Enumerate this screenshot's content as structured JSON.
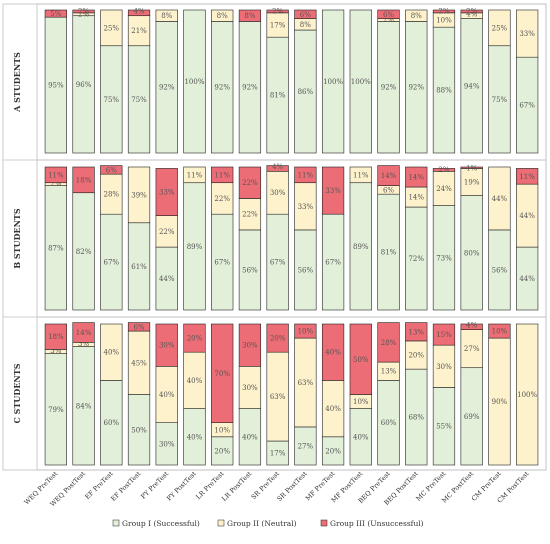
{
  "chart_data": {
    "type": "bar",
    "stacked": true,
    "percent": true,
    "categories": [
      "WEQ PreTest",
      "WEQ PostTest",
      "EF PreTest",
      "EF PostTest",
      "PY PreTest",
      "PY PostTest",
      "LR PreTest",
      "LR PostTest",
      "SR PreTest",
      "SR PostTest",
      "MF PreTest",
      "MF PostTest",
      "BEQ PreTest",
      "BEQ PostTest",
      "MC PreTest",
      "MC PostTest",
      "CM PreTest",
      "CM PostTest"
    ],
    "ylim": [
      0,
      100
    ],
    "legend": {
      "position": "bottom",
      "entries": [
        "Group I (Successful)",
        "Group II (Neutral)",
        "Group III (Unsuccessful)"
      ]
    },
    "colors": {
      "group1": "#e2efd9",
      "group2": "#fdf2cc",
      "group3": "#ec6d75",
      "edge": "#222222"
    },
    "panels": [
      {
        "name": "A STUDENTS",
        "series": [
          {
            "name": "Group I (Successful)",
            "values": [
              95,
              96,
              75,
              75,
              92,
              100,
              92,
              92,
              81,
              86,
              100,
              100,
              92,
              92,
              88,
              94,
              75,
              67
            ]
          },
          {
            "name": "Group II (Neutral)",
            "values": [
              0,
              2,
              25,
              21,
              8,
              0,
              8,
              0,
              17,
              8,
              0,
              0,
              2,
              8,
              10,
              4,
              25,
              33
            ]
          },
          {
            "name": "Group III (Unsuccessful)",
            "values": [
              5,
              2,
              0,
              4,
              0,
              0,
              0,
              8,
              2,
              6,
              0,
              0,
              6,
              0,
              2,
              2,
              0,
              0
            ]
          }
        ]
      },
      {
        "name": "B STUDENTS",
        "series": [
          {
            "name": "Group I (Successful)",
            "values": [
              87,
              82,
              67,
              61,
              44,
              89,
              67,
              56,
              67,
              56,
              67,
              89,
              81,
              72,
              73,
              80,
              56,
              44
            ]
          },
          {
            "name": "Group II (Neutral)",
            "values": [
              2,
              0,
              28,
              39,
              22,
              11,
              22,
              22,
              30,
              33,
              0,
              11,
              6,
              14,
              24,
              19,
              44,
              44
            ]
          },
          {
            "name": "Group III (Unsuccessful)",
            "values": [
              11,
              18,
              6,
              0,
              33,
              0,
              11,
              22,
              4,
              11,
              33,
              0,
              14,
              14,
              2,
              1,
              0,
              11
            ]
          }
        ]
      },
      {
        "name": "C STUDENTS",
        "series": [
          {
            "name": "Group I (Successful)",
            "values": [
              79,
              84,
              60,
              50,
              30,
              40,
              20,
              40,
              17,
              27,
              20,
              40,
              60,
              68,
              55,
              69,
              0,
              0
            ]
          },
          {
            "name": "Group II (Neutral)",
            "values": [
              3,
              3,
              40,
              45,
              40,
              40,
              10,
              30,
              63,
              63,
              40,
              10,
              13,
              20,
              30,
              27,
              90,
              100
            ]
          },
          {
            "name": "Group III (Unsuccessful)",
            "values": [
              18,
              14,
              0,
              6,
              30,
              20,
              70,
              30,
              20,
              10,
              40,
              50,
              28,
              13,
              15,
              4,
              10,
              0
            ]
          }
        ]
      }
    ],
    "labels": {
      "A STUDENTS": [
        [
          "95%",
          "",
          "5%"
        ],
        [
          "96%",
          "2%",
          "2%"
        ],
        [
          "75%",
          "25%",
          ""
        ],
        [
          "75%",
          "21%",
          "4%"
        ],
        [
          "92%",
          "8%",
          ""
        ],
        [
          "100%",
          "",
          ""
        ],
        [
          "92%",
          "8%",
          ""
        ],
        [
          "92%",
          "",
          "8%"
        ],
        [
          "81%",
          "17%",
          "2%"
        ],
        [
          "86%",
          "8%",
          "6%"
        ],
        [
          "100%",
          "",
          ""
        ],
        [
          "100%",
          "",
          ""
        ],
        [
          "92%",
          "2%",
          "6%"
        ],
        [
          "92%",
          "8%",
          ""
        ],
        [
          "88%",
          "10%",
          "2%"
        ],
        [
          "94%",
          "4%",
          "2%"
        ],
        [
          "75%",
          "25%",
          ""
        ],
        [
          "67%",
          "33%",
          ""
        ]
      ],
      "B STUDENTS": [
        [
          "87%",
          "2%",
          "11%"
        ],
        [
          "82%",
          "",
          "18%"
        ],
        [
          "67%",
          "28%",
          "6%"
        ],
        [
          "61%",
          "39%",
          ""
        ],
        [
          "44%",
          "22%",
          "33%"
        ],
        [
          "89%",
          "11%",
          ""
        ],
        [
          "67%",
          "22%",
          "11%"
        ],
        [
          "56%",
          "22%",
          "22%"
        ],
        [
          "67%",
          "30%",
          "4%"
        ],
        [
          "56%",
          "33%",
          "11%"
        ],
        [
          "67%",
          "",
          "33%"
        ],
        [
          "89%",
          "11%",
          ""
        ],
        [
          "81%",
          "6%",
          "14%"
        ],
        [
          "72%",
          "14%",
          "14%"
        ],
        [
          "73%",
          "24%",
          "2%"
        ],
        [
          "80%",
          "19%",
          "1%"
        ],
        [
          "56%",
          "44%",
          ""
        ],
        [
          "44%",
          "44%",
          "11%"
        ]
      ],
      "C STUDENTS": [
        [
          "79%",
          "3%",
          "18%"
        ],
        [
          "84%",
          "3%",
          "14%"
        ],
        [
          "60%",
          "40%",
          ""
        ],
        [
          "50%",
          "45%",
          "6%"
        ],
        [
          "30%",
          "40%",
          "30%"
        ],
        [
          "40%",
          "40%",
          "20%"
        ],
        [
          "20%",
          "10%",
          "70%"
        ],
        [
          "40%",
          "30%",
          "30%"
        ],
        [
          "17%",
          "63%",
          "20%"
        ],
        [
          "27%",
          "63%",
          "10%"
        ],
        [
          "20%",
          "40%",
          "40%"
        ],
        [
          "40%",
          "10%",
          "50%"
        ],
        [
          "60%",
          "13%",
          "28%"
        ],
        [
          "68%",
          "20%",
          "13%"
        ],
        [
          "55%",
          "30%",
          "15%"
        ],
        [
          "69%",
          "27%",
          "4%"
        ],
        [
          "",
          "90%",
          "10%"
        ],
        [
          "",
          "100%",
          ""
        ]
      ]
    }
  }
}
